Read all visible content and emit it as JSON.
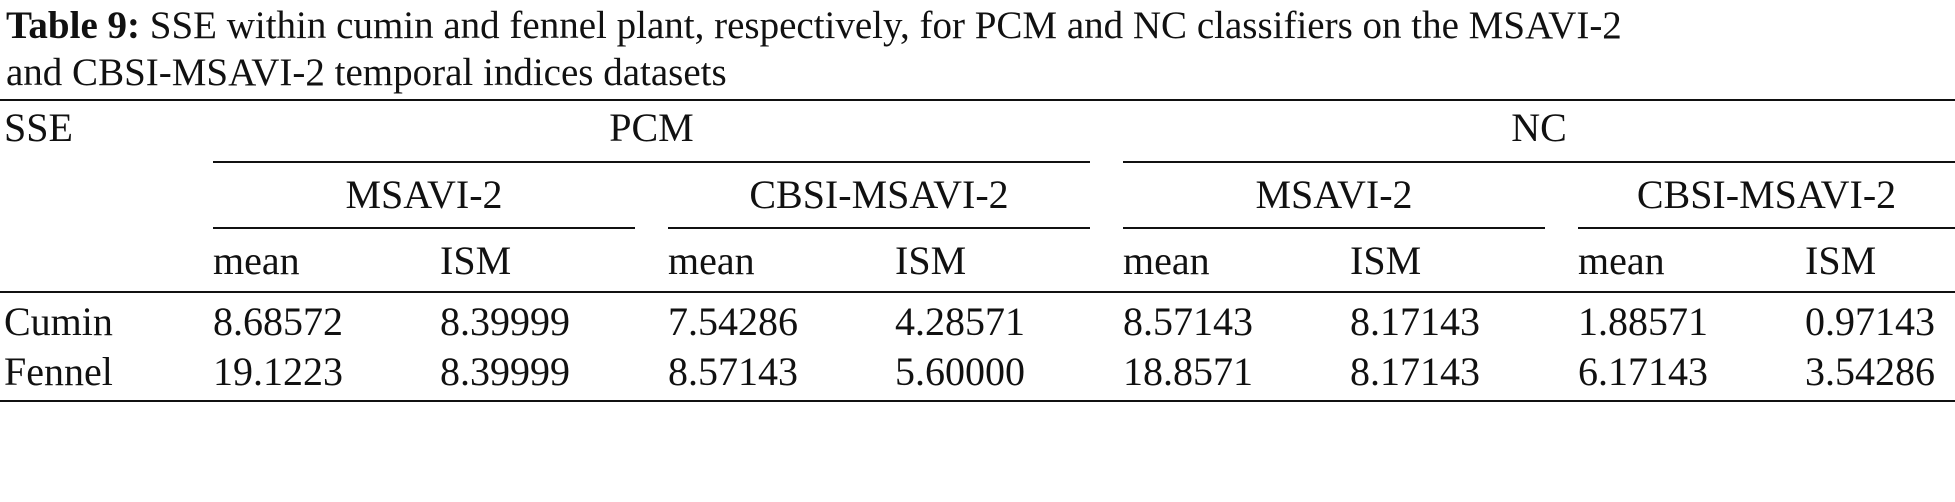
{
  "caption": {
    "label": "Table 9:",
    "text_line1": "SSE within cumin and fennel plant, respectively, for PCM and NC classifiers on the MSAVI-2",
    "text_line2": "and CBSI-MSAVI-2 temporal indices datasets"
  },
  "table": {
    "stub_header": "SSE",
    "group_headers": [
      "PCM",
      "NC"
    ],
    "sub_headers": [
      "MSAVI-2",
      "CBSI-MSAVI-2",
      "MSAVI-2",
      "CBSI-MSAVI-2"
    ],
    "column_headers": [
      "mean",
      "ISM",
      "mean",
      "ISM",
      "mean",
      "ISM",
      "mean",
      "ISM"
    ],
    "rows": [
      {
        "label": "Cumin",
        "values": [
          "8.68572",
          "8.39999",
          "7.54286",
          "4.28571",
          "8.57143",
          "8.17143",
          "1.88571",
          "0.97143"
        ]
      },
      {
        "label": "Fennel",
        "values": [
          "19.1223",
          "8.39999",
          "8.57143",
          "5.60000",
          "18.8571",
          "8.17143",
          "6.17143",
          "3.54286"
        ]
      }
    ]
  }
}
